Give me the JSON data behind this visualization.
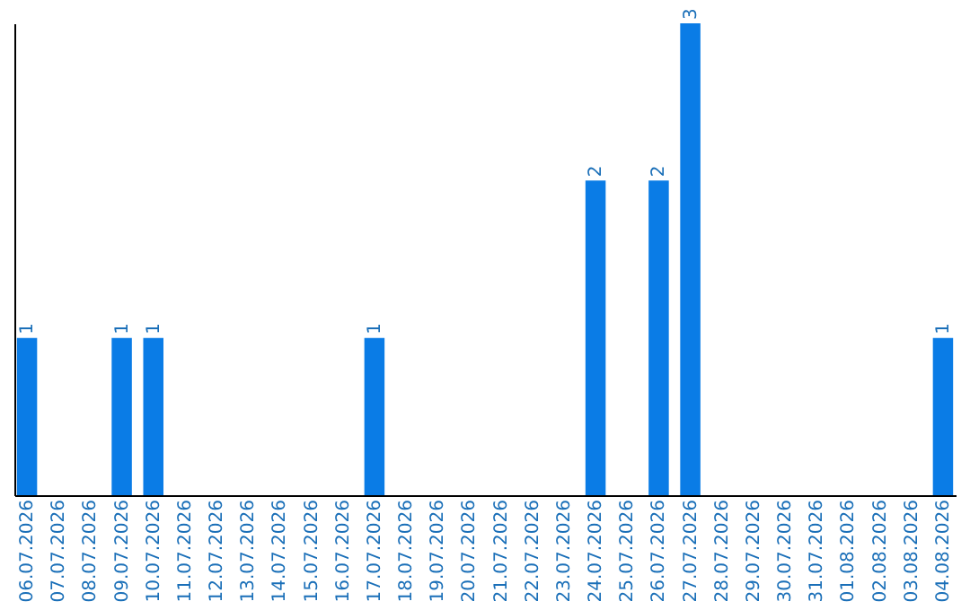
{
  "chart_data": {
    "type": "bar",
    "categories": [
      "06.07.2026",
      "07.07.2026",
      "08.07.2026",
      "09.07.2026",
      "10.07.2026",
      "11.07.2026",
      "12.07.2026",
      "13.07.2026",
      "14.07.2026",
      "15.07.2026",
      "16.07.2026",
      "17.07.2026",
      "18.07.2026",
      "19.07.2026",
      "20.07.2026",
      "21.07.2026",
      "22.07.2026",
      "23.07.2026",
      "24.07.2026",
      "25.07.2026",
      "26.07.2026",
      "27.07.2026",
      "28.07.2026",
      "29.07.2026",
      "30.07.2026",
      "31.07.2026",
      "01.08.2026",
      "02.08.2026",
      "03.08.2026",
      "04.08.2026"
    ],
    "values": [
      1,
      0,
      0,
      1,
      1,
      0,
      0,
      0,
      0,
      0,
      0,
      1,
      0,
      0,
      0,
      0,
      0,
      0,
      2,
      0,
      2,
      3,
      0,
      0,
      0,
      0,
      0,
      0,
      0,
      1
    ],
    "value_labels": [
      "1",
      null,
      null,
      "1",
      "1",
      null,
      null,
      null,
      null,
      null,
      null,
      "1",
      null,
      null,
      null,
      null,
      null,
      null,
      "2",
      null,
      "2",
      "3",
      null,
      null,
      null,
      null,
      null,
      null,
      null,
      "1"
    ],
    "color": "#0a7ce6",
    "tick_labels": "x"
  }
}
